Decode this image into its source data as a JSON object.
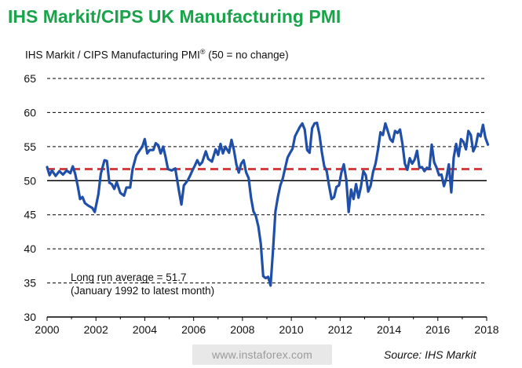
{
  "header": {
    "title": "IHS Markit/CIPS UK Manufacturing PMI",
    "subtitle": "IHS Markit / CIPS Manufacturing PMI",
    "subtitle_reg": "®",
    "subtitle_suffix": " (50 = no change)"
  },
  "footer": {
    "watermark": "www.instaforex.com",
    "source": "Source: IHS Markit"
  },
  "colors": {
    "line": "#1f4fa8",
    "average": "#d44040",
    "title": "#1aa34a"
  },
  "chart_data": {
    "type": "line",
    "title": "IHS Markit/CIPS UK Manufacturing PMI",
    "ylabel": "IHS Markit / CIPS Manufacturing PMI® (50 = no change)",
    "xlim": [
      2000,
      2018
    ],
    "ylim": [
      30,
      65
    ],
    "y_ticks": [
      30,
      35,
      40,
      45,
      50,
      55,
      60,
      65
    ],
    "x_ticks": [
      "2000",
      "2002",
      "2004",
      "2006",
      "2008",
      "2010",
      "2012",
      "2014",
      "2016",
      "2018"
    ],
    "grid": "horizontal dashed",
    "reference_line": {
      "name": "no change",
      "value": 50
    },
    "average_line": {
      "value": 51.7
    },
    "annotation_line1": "Long run average = 51.7",
    "annotation_line2": "(January 1992 to latest month)",
    "series": [
      {
        "points": [
          [
            2000.0,
            52.0
          ],
          [
            2000.1,
            50.8
          ],
          [
            2000.2,
            51.5
          ],
          [
            2000.35,
            50.7
          ],
          [
            2000.5,
            51.4
          ],
          [
            2000.65,
            50.9
          ],
          [
            2000.8,
            51.5
          ],
          [
            2000.95,
            51.1
          ],
          [
            2001.05,
            52.1
          ],
          [
            2001.15,
            51.0
          ],
          [
            2001.25,
            49.3
          ],
          [
            2001.35,
            47.3
          ],
          [
            2001.45,
            47.6
          ],
          [
            2001.55,
            46.7
          ],
          [
            2001.7,
            46.3
          ],
          [
            2001.85,
            46.0
          ],
          [
            2001.95,
            45.4
          ],
          [
            2002.1,
            48.0
          ],
          [
            2002.2,
            51.0
          ],
          [
            2002.35,
            53.0
          ],
          [
            2002.45,
            52.9
          ],
          [
            2002.55,
            49.7
          ],
          [
            2002.65,
            49.5
          ],
          [
            2002.75,
            48.8
          ],
          [
            2002.85,
            49.8
          ],
          [
            2003.0,
            48.2
          ],
          [
            2003.15,
            47.8
          ],
          [
            2003.25,
            49.0
          ],
          [
            2003.4,
            49.0
          ],
          [
            2003.5,
            51.7
          ],
          [
            2003.65,
            53.7
          ],
          [
            2003.8,
            54.5
          ],
          [
            2003.9,
            55.0
          ],
          [
            2004.0,
            56.1
          ],
          [
            2004.1,
            54.0
          ],
          [
            2004.2,
            54.5
          ],
          [
            2004.35,
            54.5
          ],
          [
            2004.45,
            55.5
          ],
          [
            2004.55,
            55.2
          ],
          [
            2004.65,
            54.0
          ],
          [
            2004.75,
            55.0
          ],
          [
            2004.85,
            53.5
          ],
          [
            2004.95,
            51.7
          ],
          [
            2005.1,
            51.5
          ],
          [
            2005.25,
            51.8
          ],
          [
            2005.4,
            48.5
          ],
          [
            2005.5,
            46.5
          ],
          [
            2005.6,
            49.3
          ],
          [
            2005.75,
            50.0
          ],
          [
            2005.85,
            50.7
          ],
          [
            2005.95,
            51.5
          ],
          [
            2006.05,
            52.2
          ],
          [
            2006.15,
            53.0
          ],
          [
            2006.25,
            52.3
          ],
          [
            2006.35,
            52.7
          ],
          [
            2006.5,
            54.3
          ],
          [
            2006.6,
            53.2
          ],
          [
            2006.75,
            52.8
          ],
          [
            2006.9,
            54.6
          ],
          [
            2007.0,
            53.8
          ],
          [
            2007.1,
            55.4
          ],
          [
            2007.2,
            54.0
          ],
          [
            2007.3,
            55.0
          ],
          [
            2007.45,
            54.1
          ],
          [
            2007.55,
            56.0
          ],
          [
            2007.65,
            54.5
          ],
          [
            2007.75,
            52.4
          ],
          [
            2007.85,
            51.2
          ],
          [
            2007.95,
            52.5
          ],
          [
            2008.05,
            53.0
          ],
          [
            2008.15,
            51.2
          ],
          [
            2008.25,
            50.4
          ],
          [
            2008.35,
            47.5
          ],
          [
            2008.45,
            45.5
          ],
          [
            2008.55,
            44.8
          ],
          [
            2008.65,
            43.3
          ],
          [
            2008.75,
            40.8
          ],
          [
            2008.85,
            36.0
          ],
          [
            2008.95,
            35.7
          ],
          [
            2009.05,
            35.9
          ],
          [
            2009.15,
            34.6
          ],
          [
            2009.25,
            39.8
          ],
          [
            2009.35,
            45.5
          ],
          [
            2009.45,
            47.6
          ],
          [
            2009.55,
            49.3
          ],
          [
            2009.65,
            50.3
          ],
          [
            2009.75,
            51.9
          ],
          [
            2009.85,
            53.4
          ],
          [
            2009.95,
            54.1
          ],
          [
            2010.05,
            54.7
          ],
          [
            2010.15,
            56.5
          ],
          [
            2010.25,
            57.2
          ],
          [
            2010.35,
            57.9
          ],
          [
            2010.45,
            58.4
          ],
          [
            2010.55,
            57.5
          ],
          [
            2010.65,
            54.5
          ],
          [
            2010.75,
            54.1
          ],
          [
            2010.85,
            57.7
          ],
          [
            2010.95,
            58.4
          ],
          [
            2011.05,
            58.5
          ],
          [
            2011.15,
            56.8
          ],
          [
            2011.25,
            54.2
          ],
          [
            2011.35,
            52.1
          ],
          [
            2011.45,
            51.4
          ],
          [
            2011.55,
            49.2
          ],
          [
            2011.65,
            47.3
          ],
          [
            2011.75,
            47.6
          ],
          [
            2011.85,
            49.1
          ],
          [
            2011.95,
            49.3
          ],
          [
            2012.05,
            51.2
          ],
          [
            2012.15,
            52.4
          ],
          [
            2012.25,
            50.2
          ],
          [
            2012.35,
            45.4
          ],
          [
            2012.45,
            48.7
          ],
          [
            2012.55,
            47.3
          ],
          [
            2012.65,
            49.5
          ],
          [
            2012.75,
            47.5
          ],
          [
            2012.85,
            49.1
          ],
          [
            2012.95,
            51.4
          ],
          [
            2013.05,
            50.8
          ],
          [
            2013.15,
            48.4
          ],
          [
            2013.25,
            49.3
          ],
          [
            2013.35,
            51.3
          ],
          [
            2013.45,
            52.5
          ],
          [
            2013.55,
            54.6
          ],
          [
            2013.65,
            57.1
          ],
          [
            2013.75,
            56.7
          ],
          [
            2013.85,
            58.4
          ],
          [
            2013.95,
            57.3
          ],
          [
            2014.05,
            56.1
          ],
          [
            2014.15,
            55.7
          ],
          [
            2014.25,
            57.3
          ],
          [
            2014.35,
            57.0
          ],
          [
            2014.45,
            57.5
          ],
          [
            2014.55,
            55.4
          ],
          [
            2014.65,
            52.5
          ],
          [
            2014.75,
            51.6
          ],
          [
            2014.85,
            53.3
          ],
          [
            2014.95,
            52.5
          ],
          [
            2015.05,
            53.1
          ],
          [
            2015.15,
            54.4
          ],
          [
            2015.25,
            51.9
          ],
          [
            2015.35,
            52.0
          ],
          [
            2015.45,
            51.4
          ],
          [
            2015.55,
            51.9
          ],
          [
            2015.65,
            51.7
          ],
          [
            2015.75,
            55.3
          ],
          [
            2015.85,
            52.7
          ],
          [
            2015.95,
            51.9
          ],
          [
            2016.05,
            50.8
          ],
          [
            2016.15,
            50.9
          ],
          [
            2016.25,
            49.2
          ],
          [
            2016.35,
            50.4
          ],
          [
            2016.45,
            52.4
          ],
          [
            2016.55,
            48.3
          ],
          [
            2016.65,
            53.4
          ],
          [
            2016.75,
            55.4
          ],
          [
            2016.85,
            53.6
          ],
          [
            2016.95,
            56.1
          ],
          [
            2017.05,
            55.7
          ],
          [
            2017.15,
            54.6
          ],
          [
            2017.25,
            57.3
          ],
          [
            2017.35,
            56.7
          ],
          [
            2017.45,
            54.3
          ],
          [
            2017.55,
            55.1
          ],
          [
            2017.65,
            56.9
          ],
          [
            2017.75,
            56.5
          ],
          [
            2017.85,
            58.2
          ],
          [
            2017.95,
            56.3
          ],
          [
            2018.05,
            55.3
          ]
        ]
      }
    ]
  }
}
